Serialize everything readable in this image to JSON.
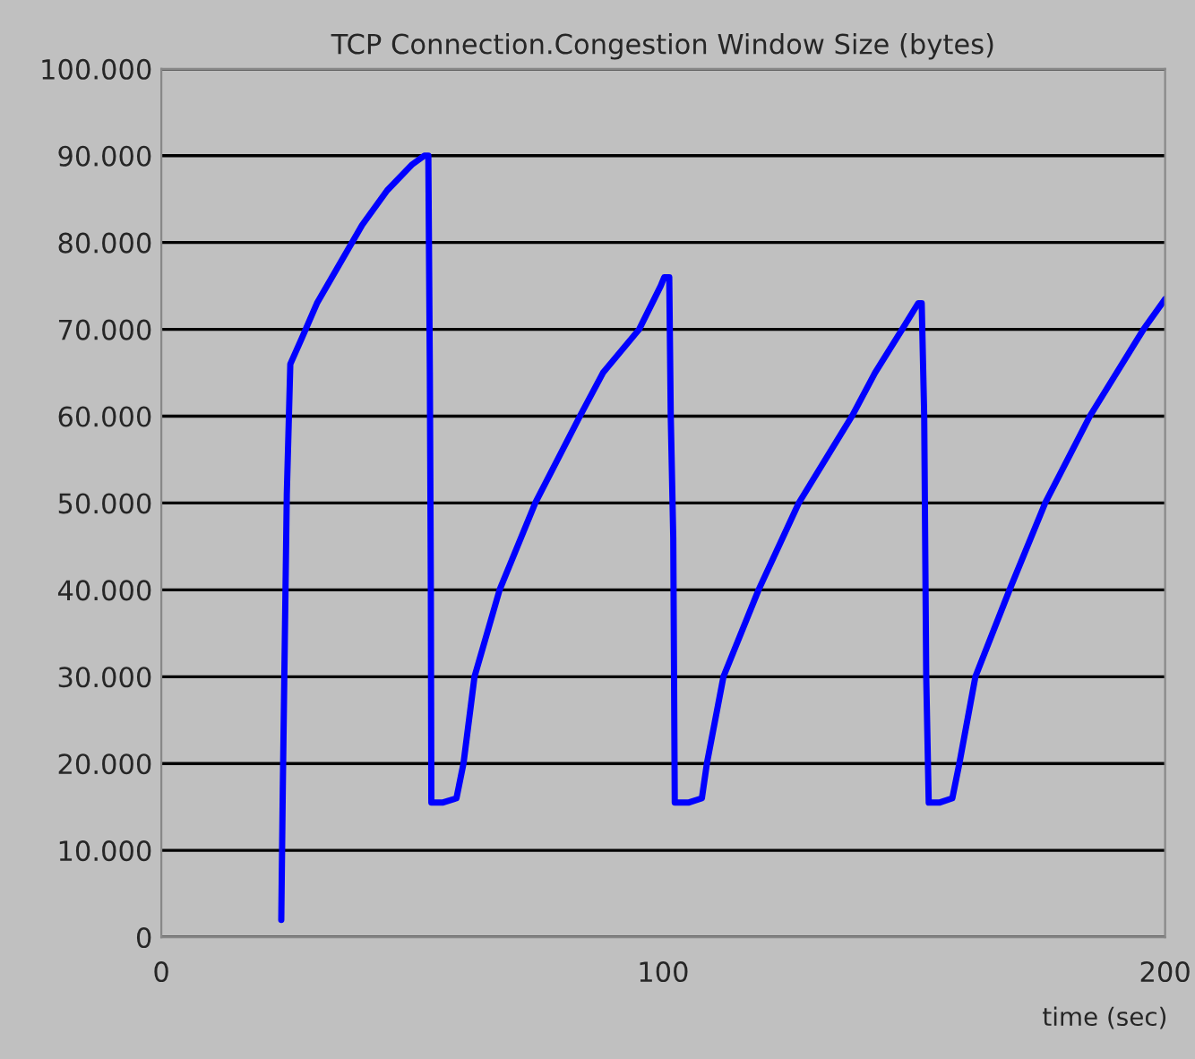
{
  "chart_data": {
    "type": "line",
    "title": "TCP Connection.Congestion Window Size (bytes)",
    "xlabel": "time (sec)",
    "series": [
      {
        "color": "#0000ff",
        "x": [
          23.9,
          24.2,
          24.6,
          25.0,
          25.7,
          28,
          31,
          35,
          40,
          45,
          50,
          52.4,
          53.2,
          53.5,
          53.7,
          53.8,
          56,
          58.8,
          60.2,
          62.4,
          67.4,
          74.5,
          83.4,
          88,
          95.2,
          99.5,
          100.2,
          101.2,
          101.5,
          102.0,
          102.3,
          105,
          107.7,
          108.7,
          112,
          119,
          127,
          137.6,
          142.2,
          147.6,
          150.8,
          151.5,
          152.0,
          152.4,
          152.9,
          155,
          157.6,
          159,
          162.2,
          169,
          176.1,
          185,
          195.7,
          200
        ],
        "values": [
          2000,
          17000,
          34000,
          51000,
          66000,
          69000,
          73000,
          77000,
          82000,
          86000,
          89000,
          90000,
          90000,
          65000,
          40000,
          15500,
          15500,
          16000,
          20000,
          30000,
          40000,
          50000,
          60000,
          65000,
          70000,
          75000,
          76000,
          76000,
          60000,
          46000,
          15500,
          15500,
          16000,
          20000,
          30000,
          40000,
          50000,
          60000,
          65000,
          70000,
          73000,
          73000,
          60000,
          30000,
          15500,
          15500,
          16000,
          20000,
          30000,
          40000,
          50000,
          60000,
          70000,
          73500
        ]
      }
    ],
    "xlim": [
      0,
      200
    ],
    "xticks": [
      0,
      100,
      200
    ],
    "ylim": [
      0,
      100000
    ],
    "yticks": [
      {
        "value": 0,
        "label": "0"
      },
      {
        "value": 10000,
        "label": "10.000"
      },
      {
        "value": 20000,
        "label": "20.000"
      },
      {
        "value": 30000,
        "label": "30.000"
      },
      {
        "value": 40000,
        "label": "40.000"
      },
      {
        "value": 50000,
        "label": "50.000"
      },
      {
        "value": 60000,
        "label": "60.000"
      },
      {
        "value": 70000,
        "label": "70.000"
      },
      {
        "value": 80000,
        "label": "80.000"
      },
      {
        "value": 90000,
        "label": "90.000"
      },
      {
        "value": 100000,
        "label": "100.000"
      }
    ],
    "grid": "y",
    "line_style": "solid",
    "marker": "none"
  }
}
